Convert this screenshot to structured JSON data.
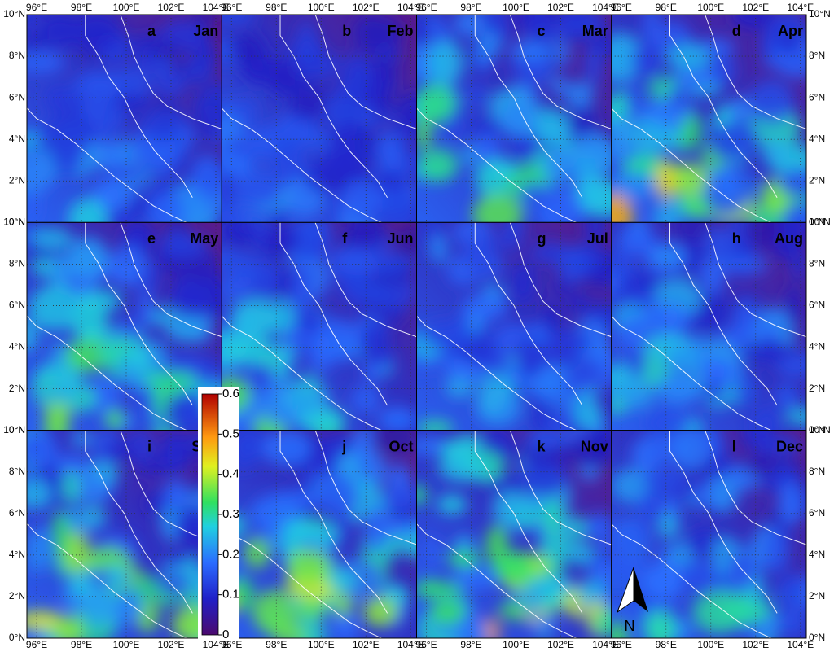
{
  "panels": [
    {
      "letter": "a",
      "month": "Jan"
    },
    {
      "letter": "b",
      "month": "Feb"
    },
    {
      "letter": "c",
      "month": "Mar"
    },
    {
      "letter": "d",
      "month": "Apr"
    },
    {
      "letter": "e",
      "month": "May"
    },
    {
      "letter": "f",
      "month": "Jun"
    },
    {
      "letter": "g",
      "month": "Jul"
    },
    {
      "letter": "h",
      "month": "Aug"
    },
    {
      "letter": "i",
      "month": "Sep"
    },
    {
      "letter": "j",
      "month": "Oct"
    },
    {
      "letter": "k",
      "month": "Nov"
    },
    {
      "letter": "l",
      "month": "Dec"
    }
  ],
  "longitude_labels": [
    "96°E",
    "98°E",
    "100°E",
    "102°E",
    "104°E"
  ],
  "latitude_labels": [
    "10°N",
    "8°N",
    "6°N",
    "4°N",
    "2°N",
    "0°N"
  ],
  "colorbar": {
    "lim": [
      0,
      0.6
    ],
    "ticks": [
      0,
      0.1,
      0.2,
      0.3,
      0.4,
      0.5,
      0.6
    ]
  },
  "north_label": "N"
}
